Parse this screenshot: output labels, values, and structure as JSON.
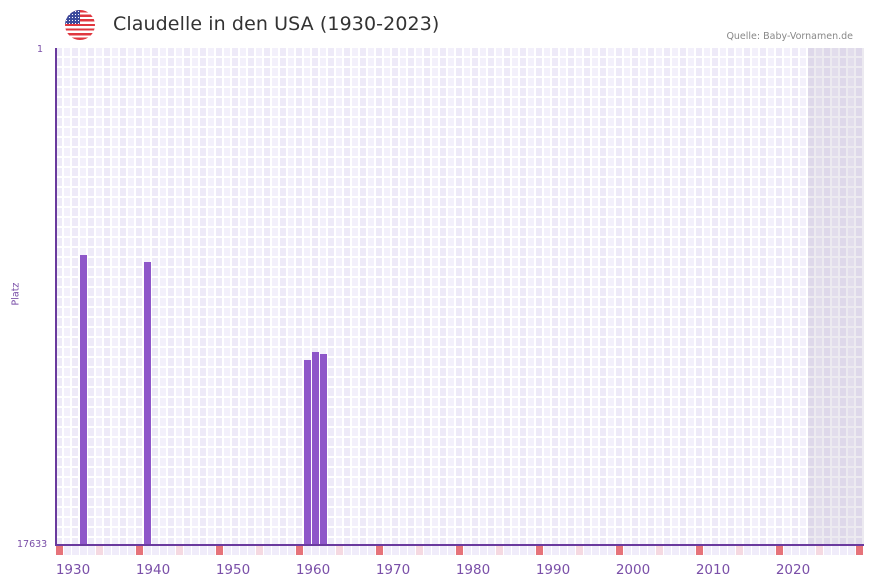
{
  "header": {
    "flag_icon": "usa-flag-icon",
    "title": "Claudelle in den USA (1930-2023)",
    "source": "Quelle: Baby-Vornamen.de"
  },
  "colors": {
    "bar": "#8e57c9",
    "axis": "#6a3a9e",
    "decade_marker": "#e6737a",
    "half_decade_marker": "#f5d9e1",
    "grid_cell": "#eeeaf8",
    "future_shade": "#e2dfec"
  },
  "chart_data": {
    "type": "bar",
    "title": "Claudelle in den USA (1930-2023)",
    "xlabel": "",
    "ylabel": "Platz",
    "y_inverted": true,
    "ylim": [
      17633,
      1
    ],
    "y_ticks": [
      "1",
      "17633"
    ],
    "x_ticks": [
      "1930",
      "1940",
      "1950",
      "1960",
      "1970",
      "1980",
      "1990",
      "2000",
      "2010",
      "2020"
    ],
    "x_range": [
      1928,
      2028
    ],
    "grid": true,
    "legend": null,
    "categories": [
      1931,
      1939,
      1959,
      1960,
      1961
    ],
    "values": [
      7330,
      7610,
      11080,
      10800,
      10840
    ],
    "series": [
      {
        "name": "Platz",
        "points": [
          {
            "year": 1931,
            "rank": 7330
          },
          {
            "year": 1939,
            "rank": 7610
          },
          {
            "year": 1959,
            "rank": 11080
          },
          {
            "year": 1960,
            "rank": 10800
          },
          {
            "year": 1961,
            "rank": 10840
          }
        ]
      }
    ],
    "shaded_region": {
      "from": 2022,
      "to": 2028
    }
  },
  "axis": {
    "y_top_label": "1",
    "y_bottom_label": "17633",
    "y_title": "Platz",
    "x_labels": [
      "1930",
      "1940",
      "1950",
      "1960",
      "1970",
      "1980",
      "1990",
      "2000",
      "2010",
      "2020"
    ]
  }
}
